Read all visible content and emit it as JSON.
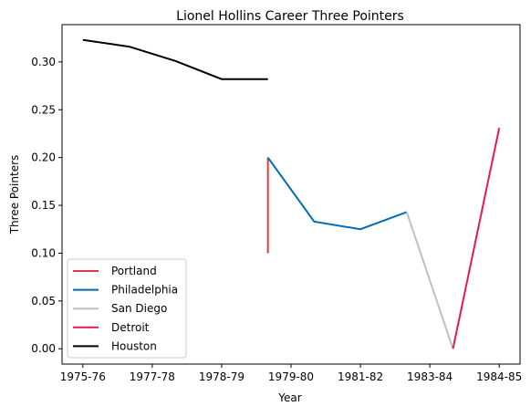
{
  "chart_data": {
    "type": "line",
    "title": "Lionel Hollins Career Three Pointers",
    "xlabel": "Year",
    "ylabel": "Three Pointers",
    "x_tick_labels": [
      "1975-76",
      "1977-78",
      "1978-79",
      "1979-80",
      "1981-82",
      "1983-84",
      "1984-85"
    ],
    "ylim": [
      -0.016,
      0.339
    ],
    "y_ticks": [
      0.0,
      0.05,
      0.1,
      0.15,
      0.2,
      0.25,
      0.3
    ],
    "y_tick_labels": [
      "0.00",
      "0.05",
      "0.10",
      "0.15",
      "0.20",
      "0.25",
      "0.30"
    ],
    "grid": false,
    "legend_position": "lower-left",
    "series": [
      {
        "name": "Portland",
        "color": "#e03a3e",
        "points": [
          [
            4.0,
            0.1
          ],
          [
            4.0,
            0.2
          ]
        ]
      },
      {
        "name": "Philadelphia",
        "color": "#006bb6",
        "points": [
          [
            4.0,
            0.2
          ],
          [
            5.0,
            0.133
          ],
          [
            6.0,
            0.125
          ],
          [
            7.0,
            0.143
          ]
        ]
      },
      {
        "name": "San Diego",
        "color": "#c0c0c0",
        "points": [
          [
            7.0,
            0.143
          ],
          [
            8.0,
            0.0
          ]
        ]
      },
      {
        "name": "Detroit",
        "color": "#e31b4f",
        "points": [
          [
            8.0,
            0.0
          ],
          [
            9.0,
            0.231
          ]
        ]
      },
      {
        "name": "Houston",
        "color": "#000000",
        "points": [
          [
            0.0,
            0.323
          ],
          [
            1.0,
            0.316
          ],
          [
            2.0,
            0.301
          ],
          [
            3.0,
            0.282
          ],
          [
            4.0,
            0.282
          ]
        ]
      }
    ]
  }
}
